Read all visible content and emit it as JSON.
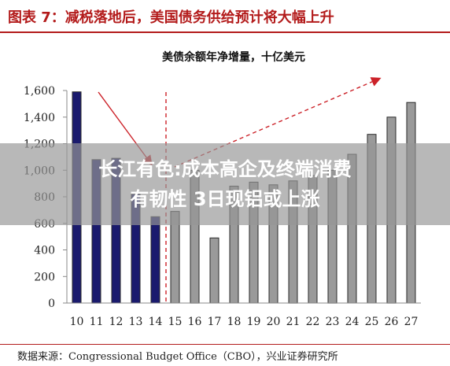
{
  "header": {
    "title": "图表 7：减税落地后，美国债务供给预计将大幅上升"
  },
  "chart_data": {
    "type": "bar",
    "title": "美债余额年净增量，十亿美元",
    "categories": [
      "10",
      "11",
      "12",
      "13",
      "14",
      "15",
      "16",
      "17",
      "18",
      "19",
      "20",
      "21",
      "22",
      "23",
      "24",
      "25",
      "26",
      "27"
    ],
    "values": [
      1590,
      1080,
      1090,
      820,
      650,
      690,
      1000,
      490,
      880,
      910,
      890,
      920,
      960,
      1000,
      1120,
      1270,
      1400,
      1510
    ],
    "actual_count": 5,
    "colors": {
      "actual": "#1a1a6e",
      "projected": "#9a9a9a",
      "arrow": "#cc2229",
      "axis": "#888888"
    },
    "ylim": [
      0,
      1600
    ],
    "yticks": [
      "0",
      "200",
      "400",
      "600",
      "800",
      "1,000",
      "1,200",
      "1,400",
      "1,600"
    ],
    "xlabel": "",
    "ylabel": ""
  },
  "footer": {
    "source": "数据来源：Congressional Budget Office（CBO），兴业证券研究所"
  },
  "overlay": {
    "line1": "长江有色:成本高企及终端消费",
    "line2": "有韧性 3日现铝或上涨"
  }
}
